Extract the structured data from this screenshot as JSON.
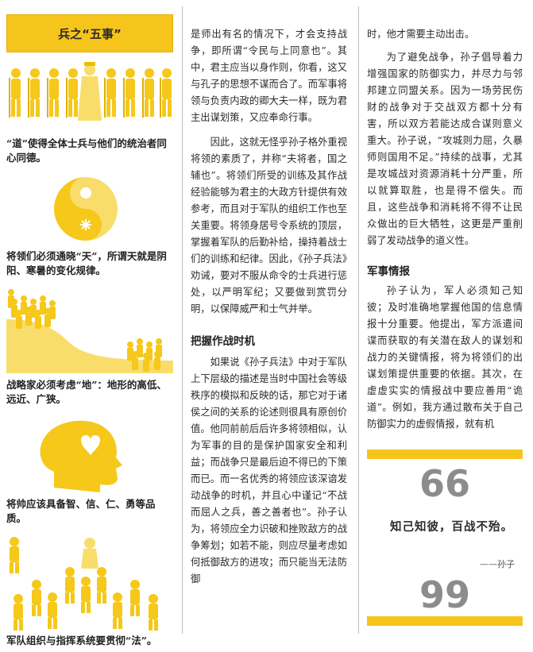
{
  "sidebar": {
    "title": "兵之“五事”",
    "caption_dao": "“道”使得全体士兵与他们的统治者同心同德。",
    "caption_tian": "将领们必须通晓“天”，所谓天就是阴阳、寒暑的变化规律。",
    "caption_di": "战略家必须考虑“地”：地形的高低、远近、广狭。",
    "caption_jiang": "将帅应该具备智、信、仁、勇等品质。",
    "caption_fa": "军队组织与指挥系统要贯彻“法”。"
  },
  "col2": {
    "p1": "是师出有名的情况下，才会支持战争，即所谓“令民与上同意也”。其中，君主应当以身作则，你看，这又与孔子的思想不谋而合了。而军事将领与负责内政的卿大夫一样，既为君主出谋划策，又应奉命行事。",
    "p2": "因此，这就无怪乎孙子格外重视将领的素质了，并称“夫将者，国之辅也”。将领们所受的训练及其作战经验能够为君主的大政方针提供有效参考，而且对于军队的组织工作也至关重要。将领身居号令系统的顶层，掌握着军队的后勤补给，操持着战士们的训练和纪律。因此，《孙子兵法》劝诫，要对不服从命令的士兵进行惩处，以严明军纪；又要做到赏罚分明，以保障威严和士气并举。",
    "heading": "把握作战时机",
    "p3": "如果说《孙子兵法》中对于军队上下层级的描述是当时中国社会等级秩序的模拟和反映的话，那它对于诸侯之间的关系的论述则很具有原创价值。他同前前后后许多将领相似，认为军事的目的是保护国家安全和利益；而战争只是最后迫不得已的下策而已。而一名优秀的将领应该深谙发动战争的时机，并且心中谨记“不战而屈人之兵，善之善者也”。孙子认为，将领应全力识破和挫败敌方的战争筹划；如若不能，则应尽量考虑如何抵御敌方的进攻；而只能当无法防御"
  },
  "col3": {
    "p1": "时，他才需要主动出击。",
    "p2": "为了避免战争，孙子倡导着力增强国家的防御实力，并尽力与邻邦建立同盟关系。因为一场劳民伤财的战争对于交战双方都十分有害，所以双方若能达成合谋则意义重大。孙子说，“攻城则力屈，久暴师则国用不足。”持续的战事，尤其是攻城战对资源消耗十分严重，所以就算取胜，也是得不偿失。而且，这些战争和消耗将不得不让民众做出的巨大牺牲，这更是严重削弱了发动战争的道义性。",
    "heading": "军事情报",
    "p3": "孙子认为，军人必须知己知彼；及时准确地掌握他国的信息情报十分重要。他提出，军方派遣间谍而获取的有关潜在敌人的谋划和战力的关键情报，将为将领们的出谋划策提供重要的依据。其次，在虚虚实实的情报战中要应善用“诡道”。例如，我方通过散布关于自己防御实力的虚假情报，就有机"
  },
  "quote": {
    "open_mark": "66",
    "close_mark": "99",
    "text": "知己知彼，百战不殆。",
    "attribution": "——孙子"
  },
  "colors": {
    "accent": "#f6c51c",
    "figure": "#f5c81a",
    "figure_light": "#f9dd6b",
    "quote_mark": "#8c8c8c"
  }
}
